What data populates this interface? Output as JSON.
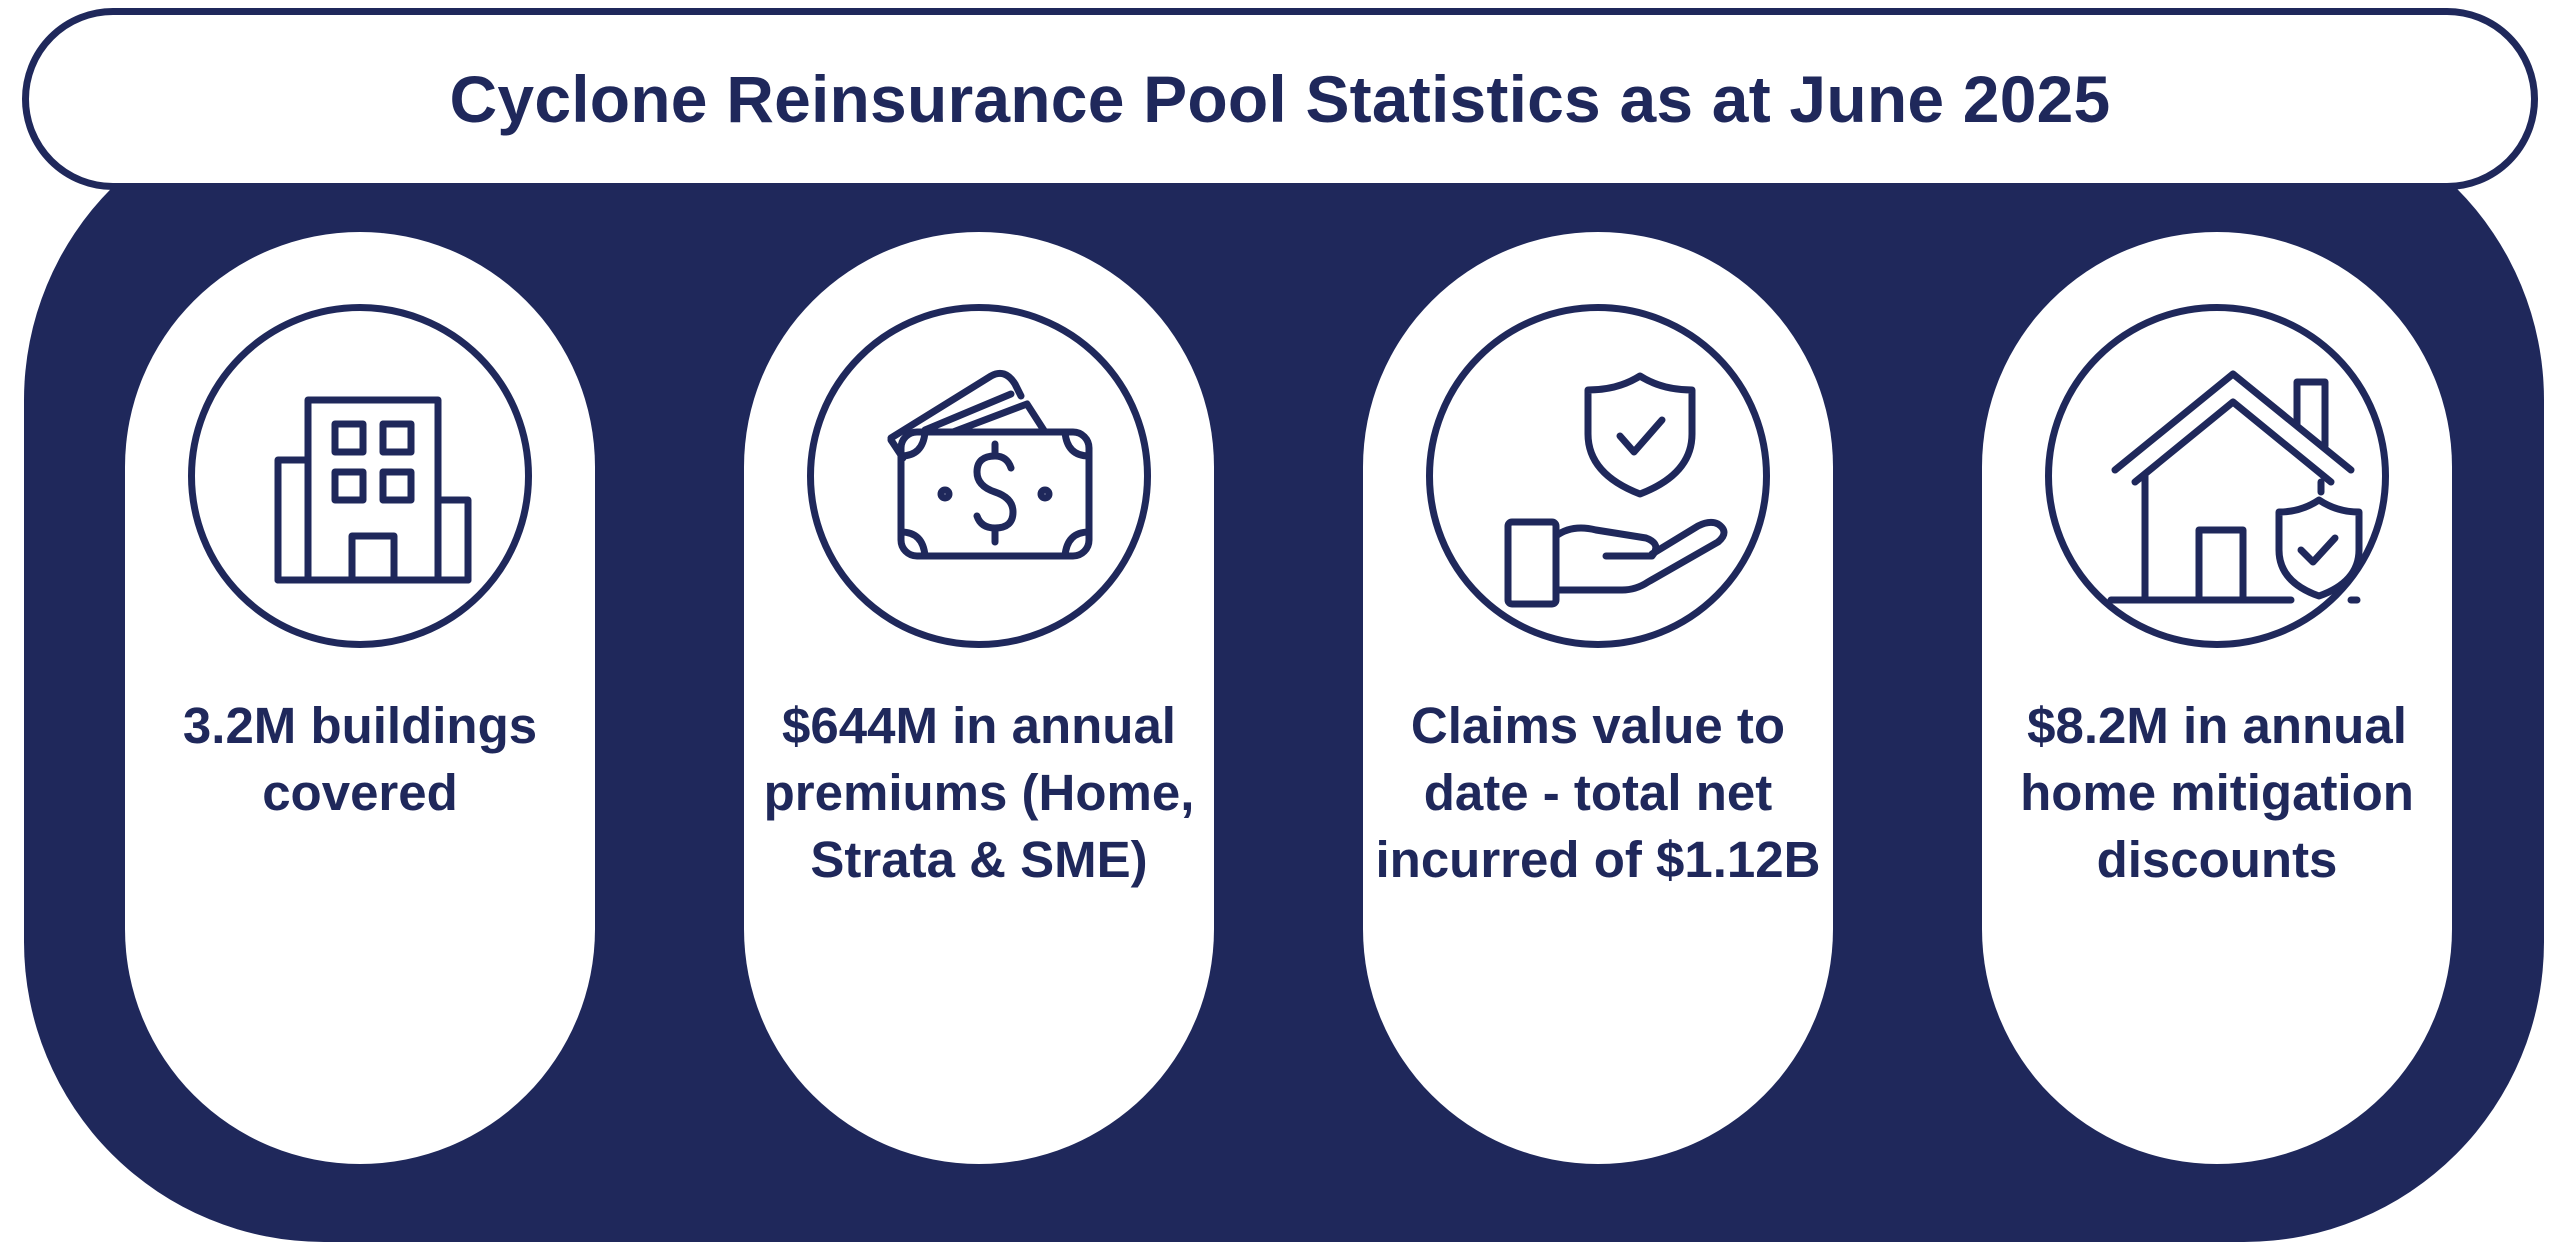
{
  "title": "Cyclone Reinsurance Pool Statistics as at June 2025",
  "colors": {
    "navy": "#1f285b",
    "white": "#ffffff"
  },
  "cards": [
    {
      "icon": "building-icon",
      "text": "3.2M buildings covered"
    },
    {
      "icon": "cash-icon",
      "text": "$644M in annual premiums (Home, Strata & SME)"
    },
    {
      "icon": "shield-hand-icon",
      "text": "Claims value to date - total net incurred of $1.12B"
    },
    {
      "icon": "house-shield-icon",
      "text": "$8.2M in annual home mitigation discounts"
    }
  ]
}
